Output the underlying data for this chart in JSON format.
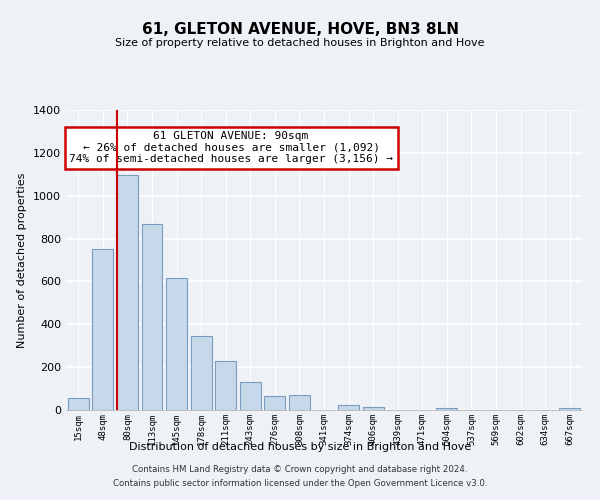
{
  "title": "61, GLETON AVENUE, HOVE, BN3 8LN",
  "subtitle": "Size of property relative to detached houses in Brighton and Hove",
  "xlabel": "Distribution of detached houses by size in Brighton and Hove",
  "ylabel": "Number of detached properties",
  "bar_labels": [
    "15sqm",
    "48sqm",
    "80sqm",
    "113sqm",
    "145sqm",
    "178sqm",
    "211sqm",
    "243sqm",
    "276sqm",
    "308sqm",
    "341sqm",
    "374sqm",
    "406sqm",
    "439sqm",
    "471sqm",
    "504sqm",
    "537sqm",
    "569sqm",
    "602sqm",
    "634sqm",
    "667sqm"
  ],
  "bar_values": [
    55,
    750,
    1095,
    870,
    615,
    345,
    228,
    130,
    65,
    70,
    0,
    25,
    15,
    0,
    0,
    10,
    0,
    0,
    0,
    0,
    10
  ],
  "ylim": [
    0,
    1400
  ],
  "yticks": [
    0,
    200,
    400,
    600,
    800,
    1000,
    1200,
    1400
  ],
  "property_label": "61 GLETON AVENUE: 90sqm",
  "annotation_line1": "← 26% of detached houses are smaller (1,092)",
  "annotation_line2": "74% of semi-detached houses are larger (3,156) →",
  "vline_x_index": 2,
  "bar_color": "#c8d8eb",
  "bar_edge_color": "#7a9cbf",
  "vline_color": "#cc0000",
  "annotation_box_edge": "#cc0000",
  "footer_line1": "Contains HM Land Registry data © Crown copyright and database right 2024.",
  "footer_line2": "Contains public sector information licensed under the Open Government Licence v3.0.",
  "bg_color": "#eef2f7"
}
